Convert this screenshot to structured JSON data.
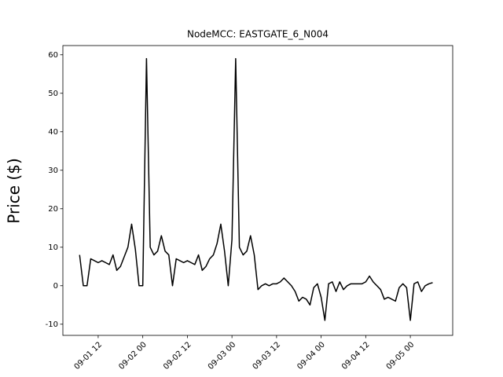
{
  "chart_data": {
    "type": "line",
    "title": "NodeMCC: EASTGATE_6_N004",
    "y_label": "Price ($)",
    "x": [
      "09-01 07",
      "09-01 08",
      "09-01 09",
      "09-01 10",
      "09-01 11",
      "09-01 12",
      "09-01 13",
      "09-01 14",
      "09-01 15",
      "09-01 16",
      "09-01 17",
      "09-01 18",
      "09-01 19",
      "09-01 20",
      "09-01 21",
      "09-01 22",
      "09-01 23",
      "09-02 00",
      "09-02 01",
      "09-02 02",
      "09-02 03",
      "09-02 04",
      "09-02 05",
      "09-02 06",
      "09-02 07",
      "09-02 08",
      "09-02 09",
      "09-02 10",
      "09-02 11",
      "09-02 12",
      "09-02 13",
      "09-02 14",
      "09-02 15",
      "09-02 16",
      "09-02 17",
      "09-02 18",
      "09-02 19",
      "09-02 20",
      "09-02 21",
      "09-02 22",
      "09-02 23",
      "09-03 00",
      "09-03 01",
      "09-03 02",
      "09-03 03",
      "09-03 04",
      "09-03 05",
      "09-03 06",
      "09-03 07",
      "09-03 08",
      "09-03 09",
      "09-03 10",
      "09-03 11",
      "09-03 12",
      "09-03 13",
      "09-03 14",
      "09-03 15",
      "09-03 16",
      "09-03 17",
      "09-03 18",
      "09-03 19",
      "09-03 20",
      "09-03 21",
      "09-03 22",
      "09-03 23",
      "09-04 00",
      "09-04 01",
      "09-04 02",
      "09-04 03",
      "09-04 04",
      "09-04 05",
      "09-04 06",
      "09-04 07",
      "09-04 08",
      "09-04 09",
      "09-04 10",
      "09-04 11",
      "09-04 12",
      "09-04 13",
      "09-04 14",
      "09-04 15",
      "09-04 16",
      "09-04 17",
      "09-04 18",
      "09-04 19",
      "09-04 20",
      "09-04 21",
      "09-04 22",
      "09-04 23",
      "09-05 00",
      "09-05 01",
      "09-05 02",
      "09-05 03",
      "09-05 04",
      "09-05 05",
      "09-05 06"
    ],
    "series": [
      {
        "color": "#000000",
        "values": [
          8,
          0,
          0,
          7,
          6.5,
          6,
          6.5,
          6,
          5.5,
          8,
          4,
          5,
          7.5,
          10,
          16,
          9.5,
          0,
          0,
          59,
          10,
          8,
          9,
          13,
          9,
          8,
          0,
          7,
          6.5,
          6,
          6.5,
          6,
          5.5,
          8,
          4,
          5,
          7,
          8,
          11,
          16,
          9,
          0,
          12,
          59,
          10,
          8,
          9,
          13,
          8,
          -1,
          0,
          0.5,
          0,
          0.5,
          0.5,
          1,
          2,
          1,
          0,
          -1.5,
          -4,
          -3,
          -3.5,
          -5,
          -0.5,
          0.5,
          -3,
          -9,
          0.5,
          1,
          -1.5,
          1,
          -1,
          0,
          0.5,
          0.5,
          0.5,
          0.5,
          1,
          2.5,
          1,
          0,
          -1,
          -3.5,
          -3,
          -3.5,
          -4,
          -0.5,
          0.5,
          -0.5,
          -9,
          0.5,
          1,
          -1.5,
          0,
          0.5,
          0.8
        ]
      }
    ],
    "xlim": [
      "09-01 02:30",
      "09-05 11:24"
    ],
    "xticks": [
      "09-01 12",
      "09-02 00",
      "09-02 12",
      "09-03 00",
      "09-03 12",
      "09-04 00",
      "09-04 12",
      "09-05 00"
    ],
    "ylim": [
      -12.9,
      62.4
    ],
    "yticks": [
      -10,
      0,
      10,
      20,
      30,
      40,
      50,
      60
    ]
  }
}
